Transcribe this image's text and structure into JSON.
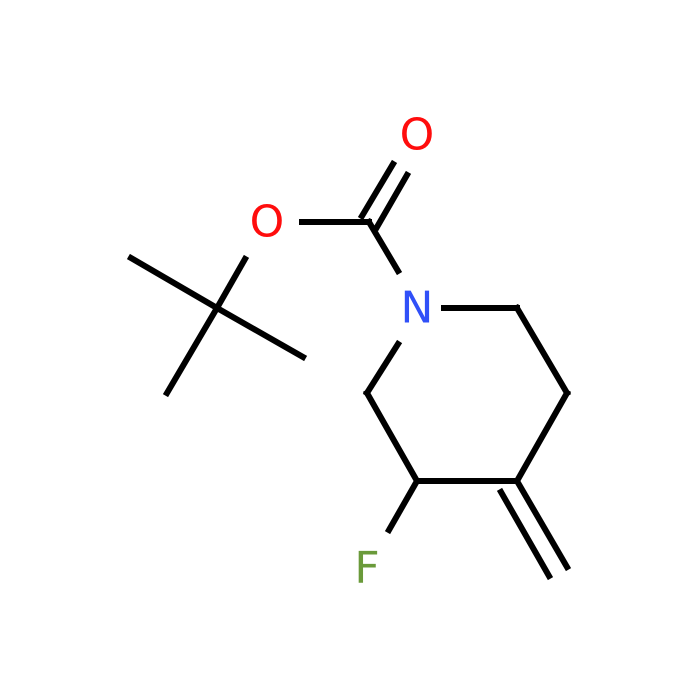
{
  "atoms": [
    {
      "label": "O",
      "color": "#ff0d0d"
    },
    {
      "label": "O",
      "color": "#ff0d0d"
    },
    {
      "label": "N",
      "color": "#3050f8"
    },
    {
      "label": "F",
      "color": "#6a9a3a"
    }
  ]
}
